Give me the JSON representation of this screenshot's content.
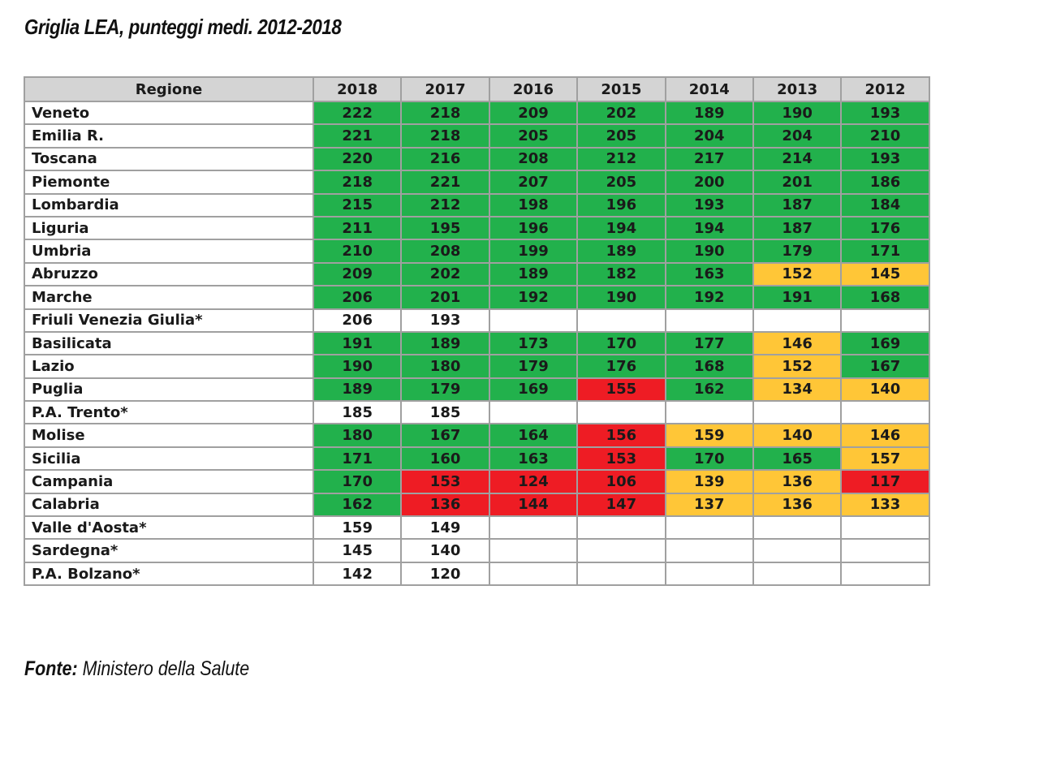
{
  "title": "Griglia LEA, punteggi medi. 2012-2018",
  "source": {
    "label": "Fonte:",
    "text": "Ministero della Salute"
  },
  "colors": {
    "green": "#22b14c",
    "yellow": "#ffc637",
    "red": "#ee1c24",
    "white": "#ffffff",
    "header": "#d4d4d4"
  },
  "chart_data": {
    "type": "table",
    "columns": [
      "Regione",
      "2018",
      "2017",
      "2016",
      "2015",
      "2014",
      "2013",
      "2012"
    ],
    "rows": [
      {
        "name": "Veneto",
        "values": [
          222,
          218,
          209,
          202,
          189,
          190,
          193
        ],
        "colors": [
          "g",
          "g",
          "g",
          "g",
          "g",
          "g",
          "g"
        ]
      },
      {
        "name": "Emilia R.",
        "values": [
          221,
          218,
          205,
          205,
          204,
          204,
          210
        ],
        "colors": [
          "g",
          "g",
          "g",
          "g",
          "g",
          "g",
          "g"
        ]
      },
      {
        "name": "Toscana",
        "values": [
          220,
          216,
          208,
          212,
          217,
          214,
          193
        ],
        "colors": [
          "g",
          "g",
          "g",
          "g",
          "g",
          "g",
          "g"
        ]
      },
      {
        "name": "Piemonte",
        "values": [
          218,
          221,
          207,
          205,
          200,
          201,
          186
        ],
        "colors": [
          "g",
          "g",
          "g",
          "g",
          "g",
          "g",
          "g"
        ]
      },
      {
        "name": "Lombardia",
        "values": [
          215,
          212,
          198,
          196,
          193,
          187,
          184
        ],
        "colors": [
          "g",
          "g",
          "g",
          "g",
          "g",
          "g",
          "g"
        ]
      },
      {
        "name": "Liguria",
        "values": [
          211,
          195,
          196,
          194,
          194,
          187,
          176
        ],
        "colors": [
          "g",
          "g",
          "g",
          "g",
          "g",
          "g",
          "g"
        ]
      },
      {
        "name": "Umbria",
        "values": [
          210,
          208,
          199,
          189,
          190,
          179,
          171
        ],
        "colors": [
          "g",
          "g",
          "g",
          "g",
          "g",
          "g",
          "g"
        ]
      },
      {
        "name": "Abruzzo",
        "values": [
          209,
          202,
          189,
          182,
          163,
          152,
          145
        ],
        "colors": [
          "g",
          "g",
          "g",
          "g",
          "g",
          "y",
          "y"
        ]
      },
      {
        "name": "Marche",
        "values": [
          206,
          201,
          192,
          190,
          192,
          191,
          168
        ],
        "colors": [
          "g",
          "g",
          "g",
          "g",
          "g",
          "g",
          "g"
        ]
      },
      {
        "name": "Friuli Venezia Giulia*",
        "values": [
          206,
          193,
          null,
          null,
          null,
          null,
          null
        ],
        "colors": [
          "w",
          "w",
          "w",
          "w",
          "w",
          "w",
          "w"
        ]
      },
      {
        "name": "Basilicata",
        "values": [
          191,
          189,
          173,
          170,
          177,
          146,
          169
        ],
        "colors": [
          "g",
          "g",
          "g",
          "g",
          "g",
          "y",
          "g"
        ]
      },
      {
        "name": "Lazio",
        "values": [
          190,
          180,
          179,
          176,
          168,
          152,
          167
        ],
        "colors": [
          "g",
          "g",
          "g",
          "g",
          "g",
          "y",
          "g"
        ]
      },
      {
        "name": "Puglia",
        "values": [
          189,
          179,
          169,
          155,
          162,
          134,
          140
        ],
        "colors": [
          "g",
          "g",
          "g",
          "r",
          "g",
          "y",
          "y"
        ]
      },
      {
        "name": "P.A. Trento*",
        "values": [
          185,
          185,
          null,
          null,
          null,
          null,
          null
        ],
        "colors": [
          "w",
          "w",
          "w",
          "w",
          "w",
          "w",
          "w"
        ]
      },
      {
        "name": "Molise",
        "values": [
          180,
          167,
          164,
          156,
          159,
          140,
          146
        ],
        "colors": [
          "g",
          "g",
          "g",
          "r",
          "y",
          "y",
          "y"
        ]
      },
      {
        "name": "Sicilia",
        "values": [
          171,
          160,
          163,
          153,
          170,
          165,
          157
        ],
        "colors": [
          "g",
          "g",
          "g",
          "r",
          "g",
          "g",
          "y"
        ]
      },
      {
        "name": "Campania",
        "values": [
          170,
          153,
          124,
          106,
          139,
          136,
          117
        ],
        "colors": [
          "g",
          "r",
          "r",
          "r",
          "y",
          "y",
          "r"
        ]
      },
      {
        "name": "Calabria",
        "values": [
          162,
          136,
          144,
          147,
          137,
          136,
          133
        ],
        "colors": [
          "g",
          "r",
          "r",
          "r",
          "y",
          "y",
          "y"
        ]
      },
      {
        "name": "Valle d'Aosta*",
        "values": [
          159,
          149,
          null,
          null,
          null,
          null,
          null
        ],
        "colors": [
          "w",
          "w",
          "w",
          "w",
          "w",
          "w",
          "w"
        ]
      },
      {
        "name": "Sardegna*",
        "values": [
          145,
          140,
          null,
          null,
          null,
          null,
          null
        ],
        "colors": [
          "w",
          "w",
          "w",
          "w",
          "w",
          "w",
          "w"
        ]
      },
      {
        "name": "P.A. Bolzano*",
        "values": [
          142,
          120,
          null,
          null,
          null,
          null,
          null
        ],
        "colors": [
          "w",
          "w",
          "w",
          "w",
          "w",
          "w",
          "w"
        ]
      }
    ]
  }
}
